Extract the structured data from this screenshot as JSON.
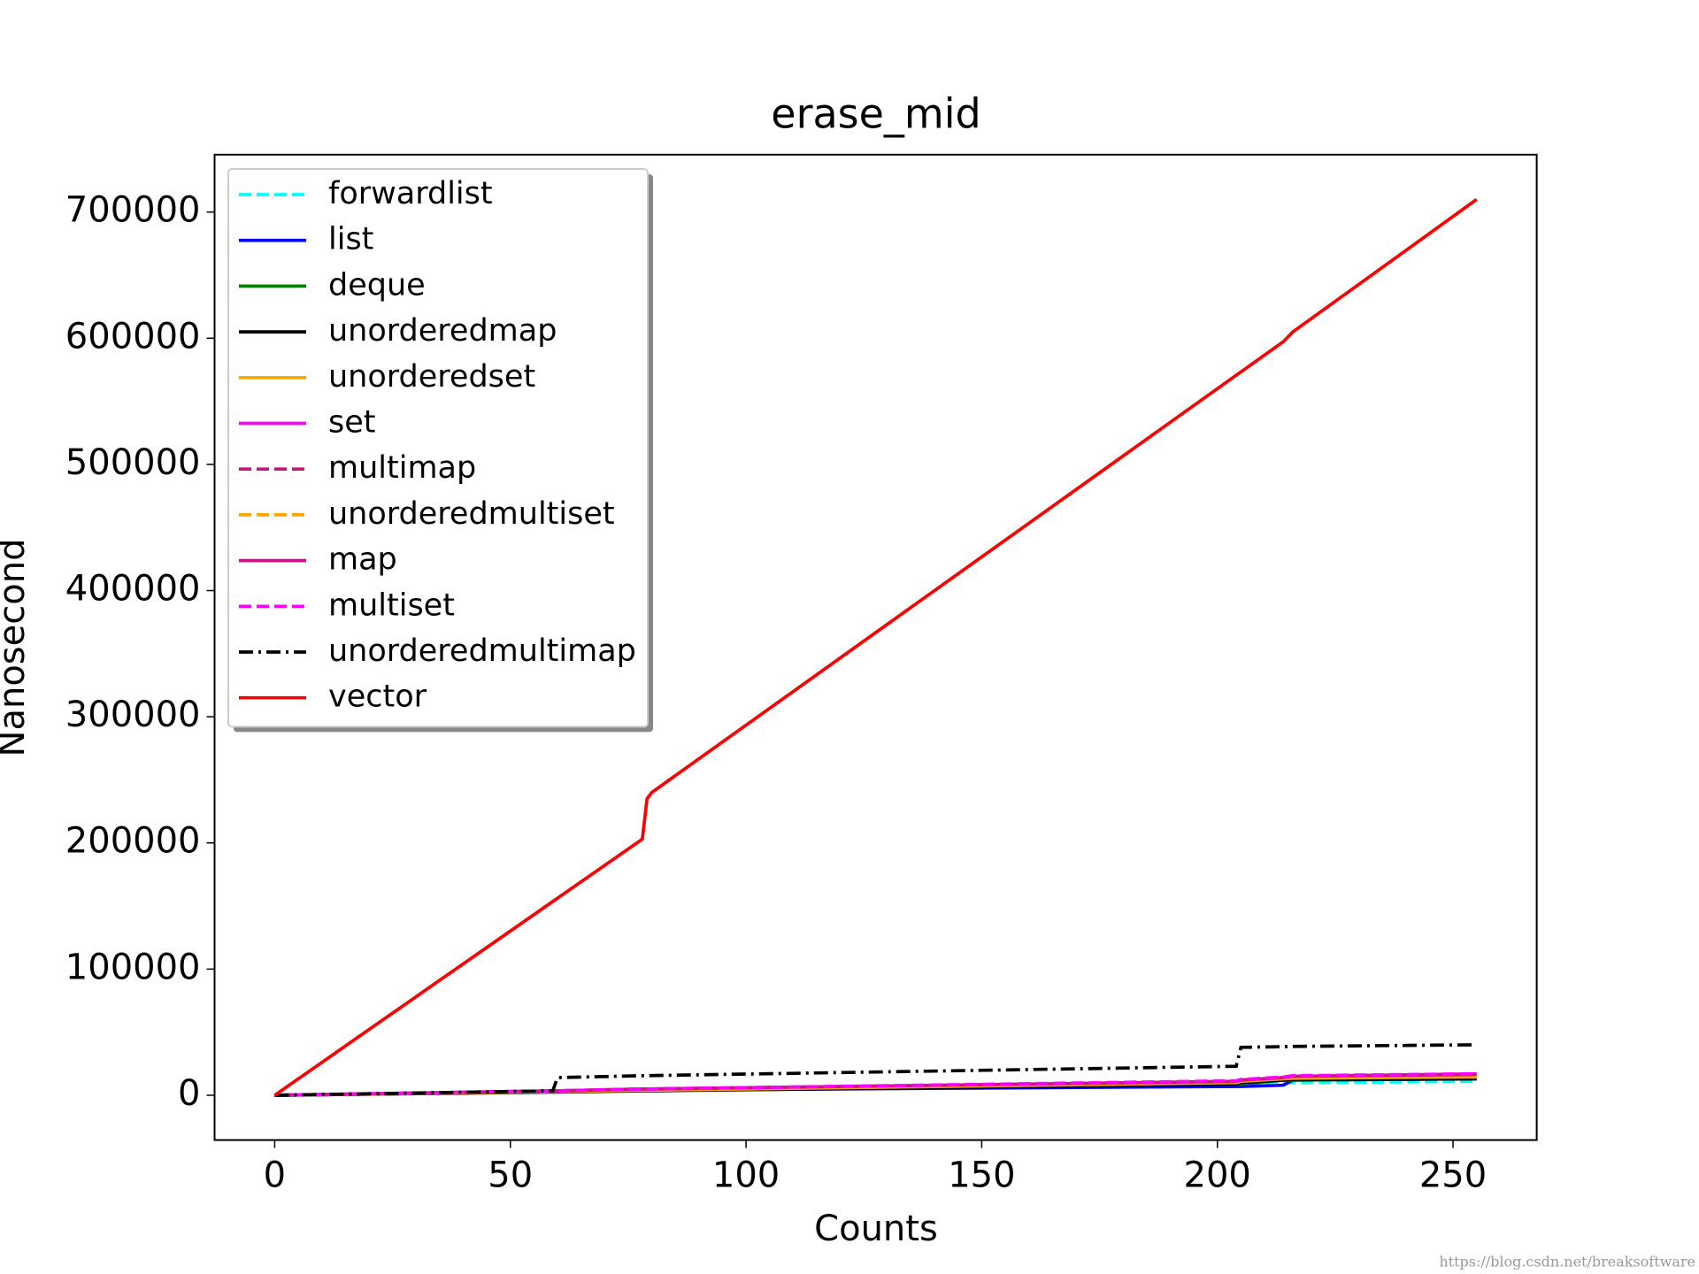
{
  "chart_data": {
    "type": "line",
    "title": "erase_mid",
    "xlabel": "Counts",
    "ylabel": "Nanosecond",
    "watermark": "https://blog.csdn.net/breaksoftware",
    "x": [
      0,
      59,
      60,
      78,
      79,
      80,
      204,
      205,
      214,
      216,
      255
    ],
    "series": [
      {
        "name": "forwardlist",
        "color": "#00ffff",
        "dash": "dashed",
        "values": [
          0,
          3000,
          3000,
          4000,
          4000,
          4000,
          8000,
          8000,
          10000,
          10000,
          11000
        ]
      },
      {
        "name": "list",
        "color": "#0000ff",
        "dash": "solid",
        "values": [
          0,
          3000,
          3000,
          4000,
          4000,
          4000,
          7000,
          7000,
          8000,
          12000,
          13000
        ]
      },
      {
        "name": "deque",
        "color": "#008000",
        "dash": "solid",
        "values": [
          0,
          3000,
          3000,
          4000,
          4000,
          4000,
          9000,
          9000,
          12000,
          12000,
          13000
        ]
      },
      {
        "name": "unorderedmap",
        "color": "#000000",
        "dash": "solid",
        "values": [
          0,
          2500,
          2500,
          3500,
          3500,
          3500,
          9000,
          10000,
          12000,
          12500,
          13000
        ]
      },
      {
        "name": "unorderedset",
        "color": "#ffa500",
        "dash": "solid",
        "values": [
          0,
          3000,
          3000,
          4000,
          4000,
          4000,
          10000,
          11000,
          13000,
          13500,
          14500
        ]
      },
      {
        "name": "set",
        "color": "#ff00ff",
        "dash": "solid",
        "values": [
          0,
          3500,
          3500,
          5000,
          5000,
          5000,
          11000,
          12000,
          14000,
          15000,
          17000
        ]
      },
      {
        "name": "multimap",
        "color": "#c71585",
        "dash": "dashed",
        "values": [
          0,
          3500,
          3500,
          5000,
          5000,
          5000,
          11000,
          12000,
          14000,
          15000,
          16500
        ]
      },
      {
        "name": "unorderedmultiset",
        "color": "#ffa500",
        "dash": "dashed",
        "values": [
          0,
          3000,
          3000,
          4500,
          4500,
          4500,
          10500,
          11500,
          13500,
          14000,
          15500
        ]
      },
      {
        "name": "map",
        "color": "#c71585",
        "dash": "solid",
        "values": [
          0,
          3500,
          3500,
          5000,
          5000,
          5000,
          11000,
          12000,
          14000,
          15000,
          16500
        ]
      },
      {
        "name": "multiset",
        "color": "#ff00ff",
        "dash": "dashed",
        "values": [
          0,
          3500,
          3500,
          5000,
          5000,
          5000,
          11500,
          12500,
          14500,
          15500,
          17000
        ]
      },
      {
        "name": "unorderedmultimap",
        "color": "#000000",
        "dash": "dashdot",
        "values": [
          0,
          3500,
          14000,
          15500,
          15500,
          15600,
          23000,
          38000,
          38500,
          38700,
          40000
        ]
      },
      {
        "name": "vector",
        "color": "#ff0000",
        "dash": "solid",
        "values": [
          0,
          153600,
          156200,
          203000,
          235000,
          240000,
          570700,
          573300,
          597300,
          605000,
          710000
        ]
      }
    ],
    "xlim": [
      -12.75,
      267.75
    ],
    "xticks": [
      0,
      50,
      100,
      150,
      200,
      250
    ],
    "ylim": [
      -35500,
      745500
    ],
    "yticks": [
      0,
      100000,
      200000,
      300000,
      400000,
      500000,
      600000,
      700000
    ],
    "grid": false,
    "legend": "upper left"
  }
}
